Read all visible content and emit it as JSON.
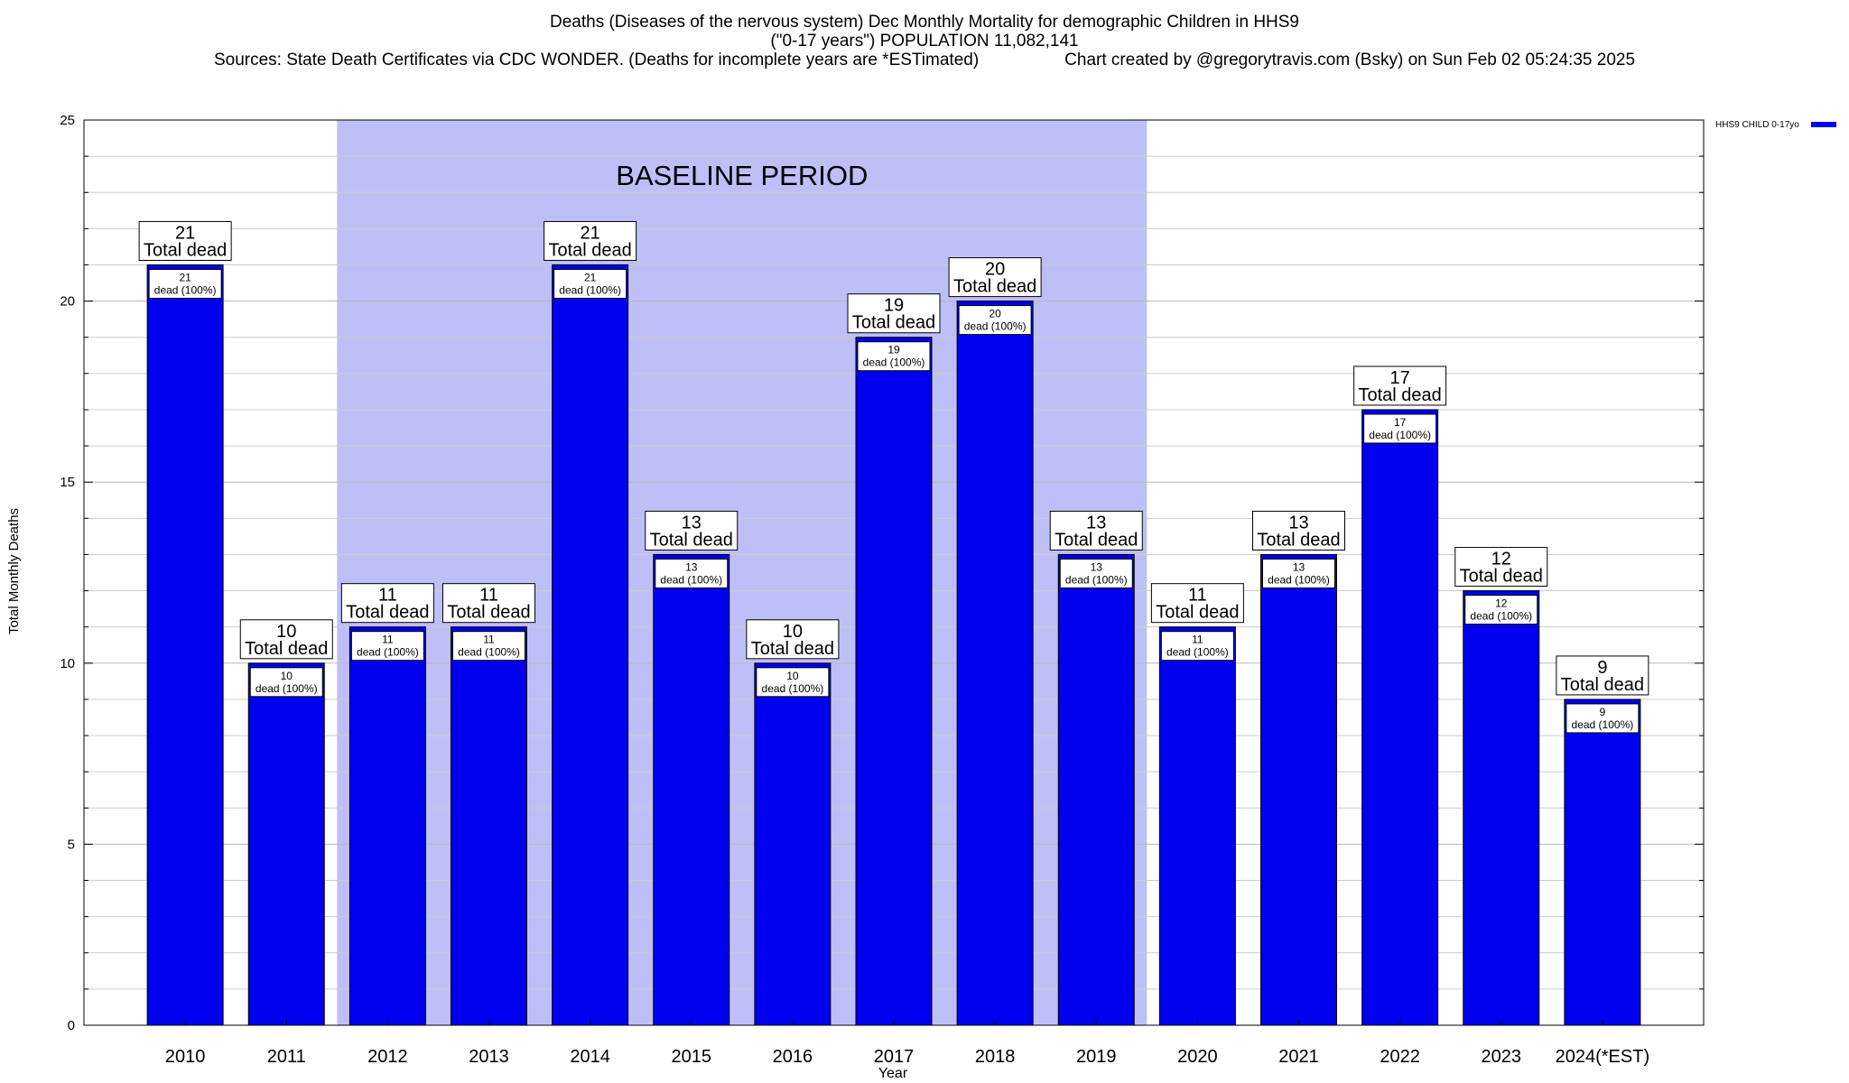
{
  "title_lines": [
    "Deaths (Diseases of the nervous system) Dec Monthly Mortality for demographic Children in HHS9",
    "(\"0-17 years\") POPULATION 11,082,141",
    "Sources: State Death Certificates via CDC WONDER. (Deaths for incomplete years are *ESTimated)                  Chart created by @gregorytravis.com (Bsky) on Sun Feb 02 05:24:35 2025"
  ],
  "chart_data": {
    "type": "bar",
    "categories": [
      "2010",
      "2011",
      "2012",
      "2013",
      "2014",
      "2015",
      "2016",
      "2017",
      "2018",
      "2019",
      "2020",
      "2021",
      "2022",
      "2023",
      "2024(*EST)"
    ],
    "series": [
      {
        "name": "HHS9 CHILD 0-17yo",
        "values": [
          21,
          10,
          11,
          11,
          21,
          13,
          10,
          19,
          20,
          13,
          11,
          13,
          17,
          12,
          9
        ]
      }
    ],
    "total_labels": [
      "21",
      "10",
      "11",
      "11",
      "21",
      "13",
      "10",
      "19",
      "20",
      "13",
      "11",
      "13",
      "17",
      "12",
      "9"
    ],
    "total_label_suffix": "Total dead",
    "inner_labels": [
      "21",
      "10",
      "11",
      "11",
      "21",
      "13",
      "10",
      "19",
      "20",
      "13",
      "11",
      "13",
      "17",
      "12",
      "9"
    ],
    "inner_label_suffix": "dead (100%)",
    "xlabel": "Year",
    "ylabel": "Total Monthly Deaths",
    "ylim": [
      0,
      25
    ],
    "yticks": [
      "0",
      "5",
      "10",
      "15",
      "20",
      "25"
    ],
    "minor_grid_step": 1,
    "grid": true,
    "legend_position": "top-right",
    "baseline": {
      "label": "BASELINE PERIOD",
      "start": "2012",
      "end": "2019"
    },
    "colors": {
      "bar": "#0000ee",
      "baseline_shade": "#bfbff8",
      "legend_swatch": "#0000ee"
    }
  }
}
